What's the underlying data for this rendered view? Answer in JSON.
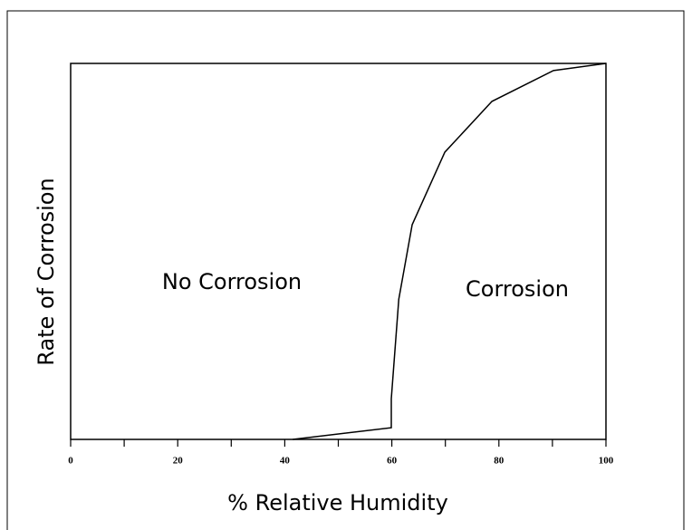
{
  "chart_data": {
    "type": "line",
    "x_label": "% Relative Humidity",
    "y_label": "Rate of Corrosion",
    "annotations": [
      "No Corrosion",
      "Corrosion"
    ],
    "x": [
      41.5,
      59.9,
      59.9,
      61.3,
      63.8,
      69.9,
      78.7,
      90.2,
      100
    ],
    "series": [
      {
        "color": "#000000",
        "values": [
          0,
          3.1,
          10.8,
          37.3,
          57.1,
          76.4,
          89.9,
          98.1,
          100
        ]
      }
    ],
    "xlim": [
      0,
      100
    ],
    "xticks": [
      0,
      20,
      40,
      60,
      80,
      100
    ],
    "xminor_ticks": [
      10,
      30,
      50,
      70,
      90
    ],
    "ylim": [
      0,
      100
    ]
  }
}
